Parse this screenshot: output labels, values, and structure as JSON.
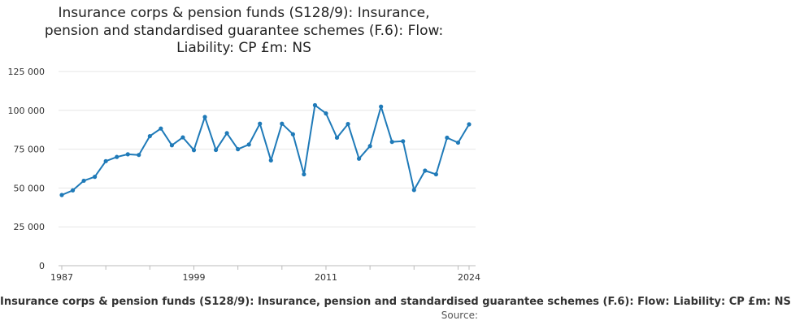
{
  "chart_data": {
    "type": "line",
    "title_lines": [
      "Insurance corps & pension funds (S128/9): Insurance,",
      "pension and standardised guarantee schemes (F.6): Flow:",
      "Liability: CP £m: NS"
    ],
    "xlabel": "",
    "ylabel": "",
    "x": [
      1987,
      1988,
      1989,
      1990,
      1991,
      1992,
      1993,
      1994,
      1995,
      1996,
      1997,
      1998,
      1999,
      2000,
      2001,
      2002,
      2003,
      2004,
      2005,
      2006,
      2007,
      2008,
      2009,
      2010,
      2011,
      2012,
      2013,
      2014,
      2015,
      2016,
      2017,
      2018,
      2019,
      2020,
      2021,
      2022,
      2023,
      2024
    ],
    "series": [
      {
        "name": "Insurance corps & pension funds (S128/9): Insurance, pension and standardised guarantee schemes (F.6): Flow: Liability: CP £m: NS",
        "values": [
          45500,
          48500,
          54700,
          57200,
          67300,
          70000,
          71700,
          71300,
          83400,
          88300,
          77500,
          82600,
          74400,
          95700,
          74500,
          85300,
          75000,
          78000,
          91400,
          67800,
          91400,
          84600,
          58800,
          103300,
          98000,
          82400,
          91200,
          68900,
          77000,
          102400,
          79700,
          80100,
          48700,
          61200,
          58800,
          82400,
          79200,
          91000
        ]
      }
    ],
    "xticks": [
      1987,
      1999,
      2011,
      2024
    ],
    "xlim": [
      1987,
      2024
    ],
    "ylim": [
      0,
      125000
    ],
    "yticks": [
      0,
      25000,
      50000,
      75000,
      100000,
      125000
    ],
    "ytick_labels": [
      "0",
      "25 000",
      "50 000",
      "75 000",
      "100 000",
      "125 000"
    ],
    "grid": "horizontal",
    "line_color": "#1f7ab8",
    "legend_position": "bottom",
    "source_label": "Source:"
  }
}
